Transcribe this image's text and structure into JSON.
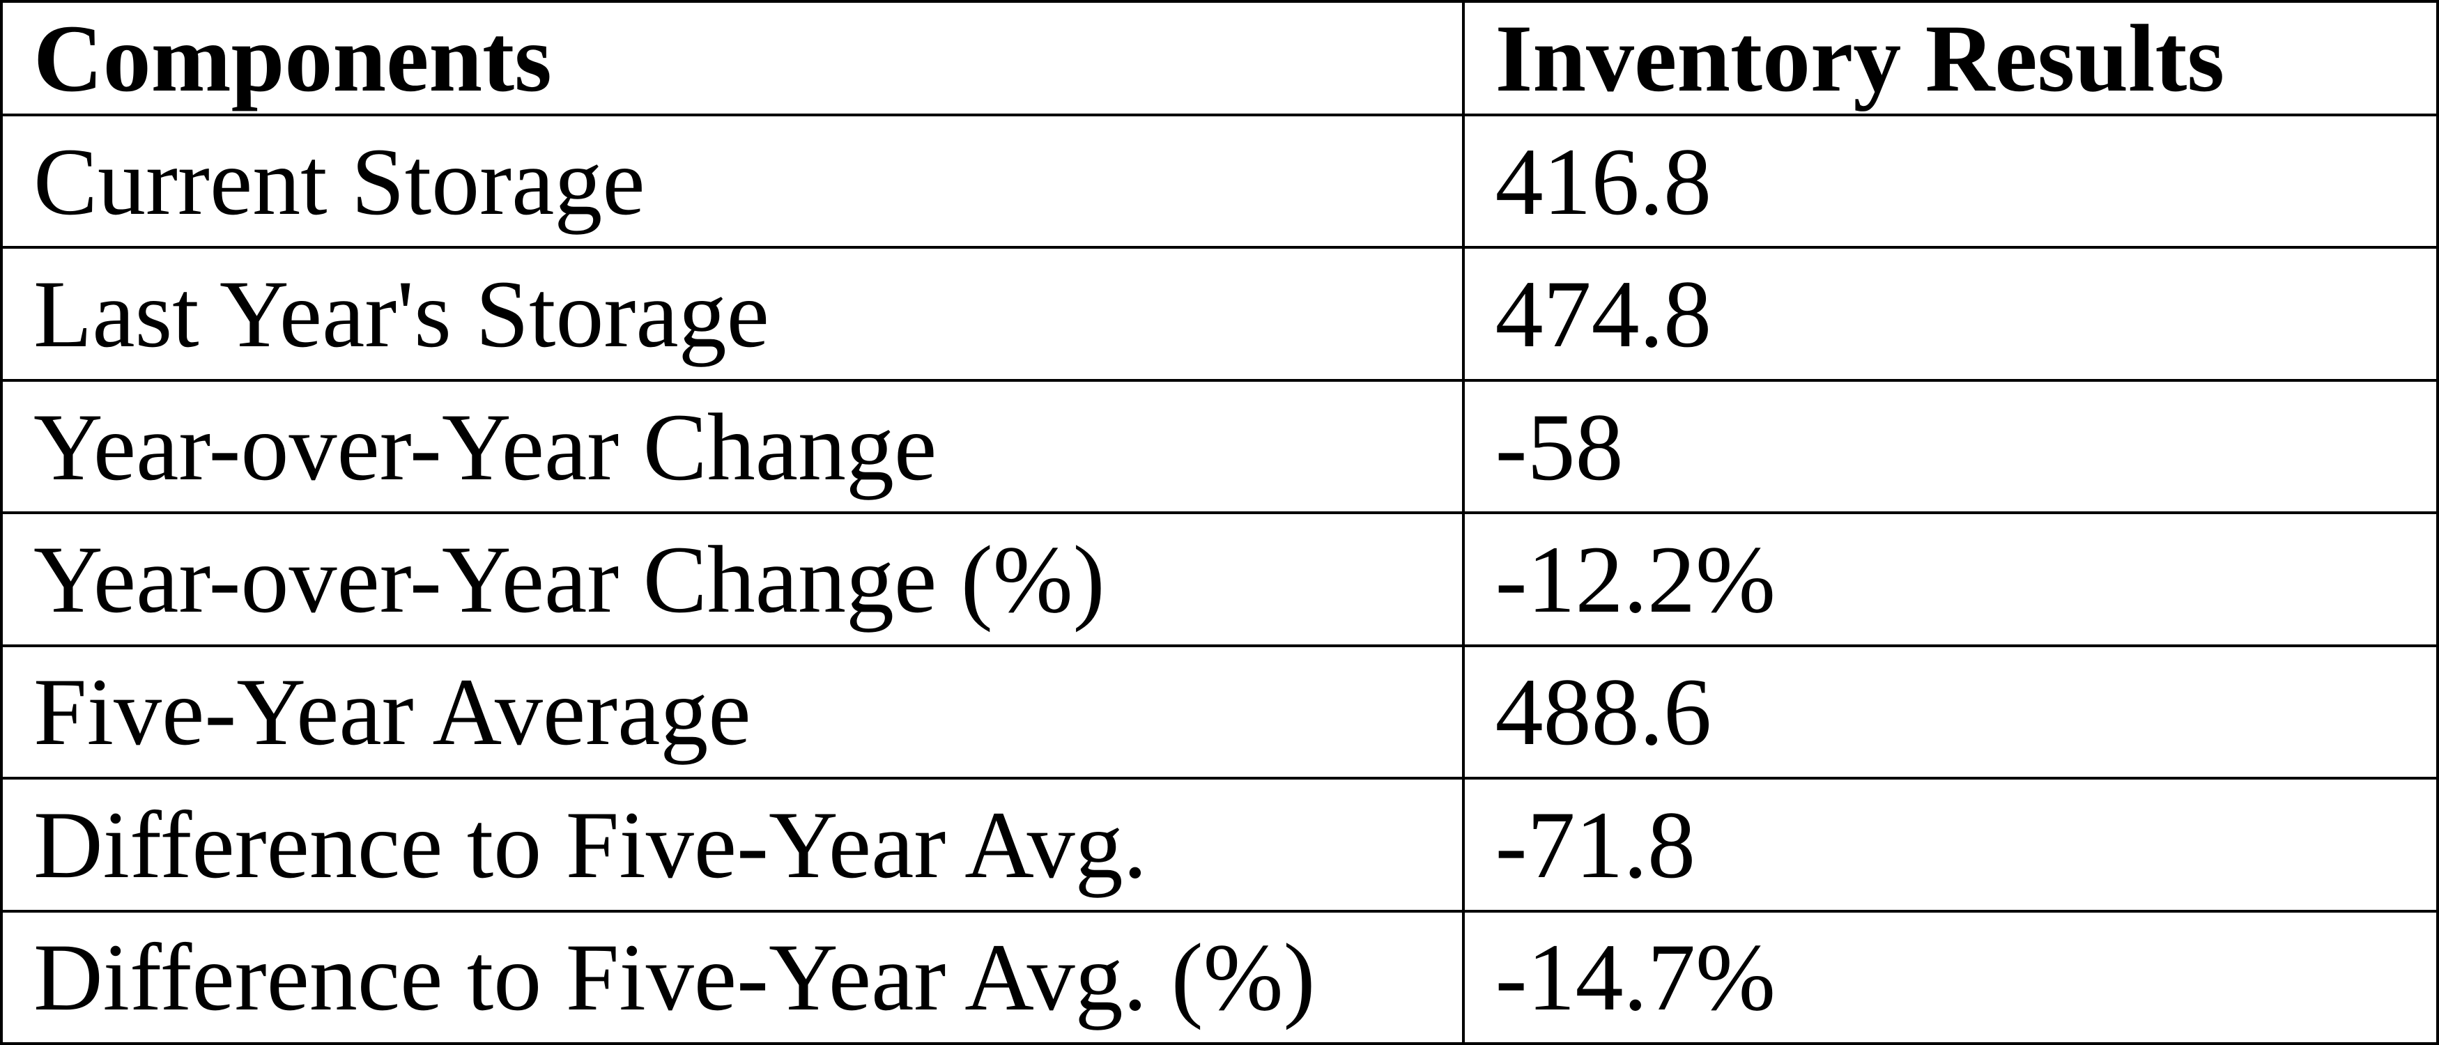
{
  "chart_data": {
    "type": "table",
    "title": "",
    "columns": [
      "Components",
      "Inventory Results"
    ],
    "rows": [
      {
        "component": "Current Storage",
        "value": "416.8"
      },
      {
        "component": "Last Year's Storage",
        "value": "474.8"
      },
      {
        "component": "Year-over-Year Change",
        "value": "-58"
      },
      {
        "component": "Year-over-Year Change (%)",
        "value": "-12.2%"
      },
      {
        "component": "Five-Year Average",
        "value": "488.6"
      },
      {
        "component": "Difference to Five-Year Avg.",
        "value": "-71.8"
      },
      {
        "component": "Difference to Five-Year Avg. (%)",
        "value": "-14.7%"
      }
    ],
    "layout": {
      "grid": "on",
      "border_color": "#000000",
      "background_color": "#ffffff",
      "text_color": "#000000"
    }
  }
}
